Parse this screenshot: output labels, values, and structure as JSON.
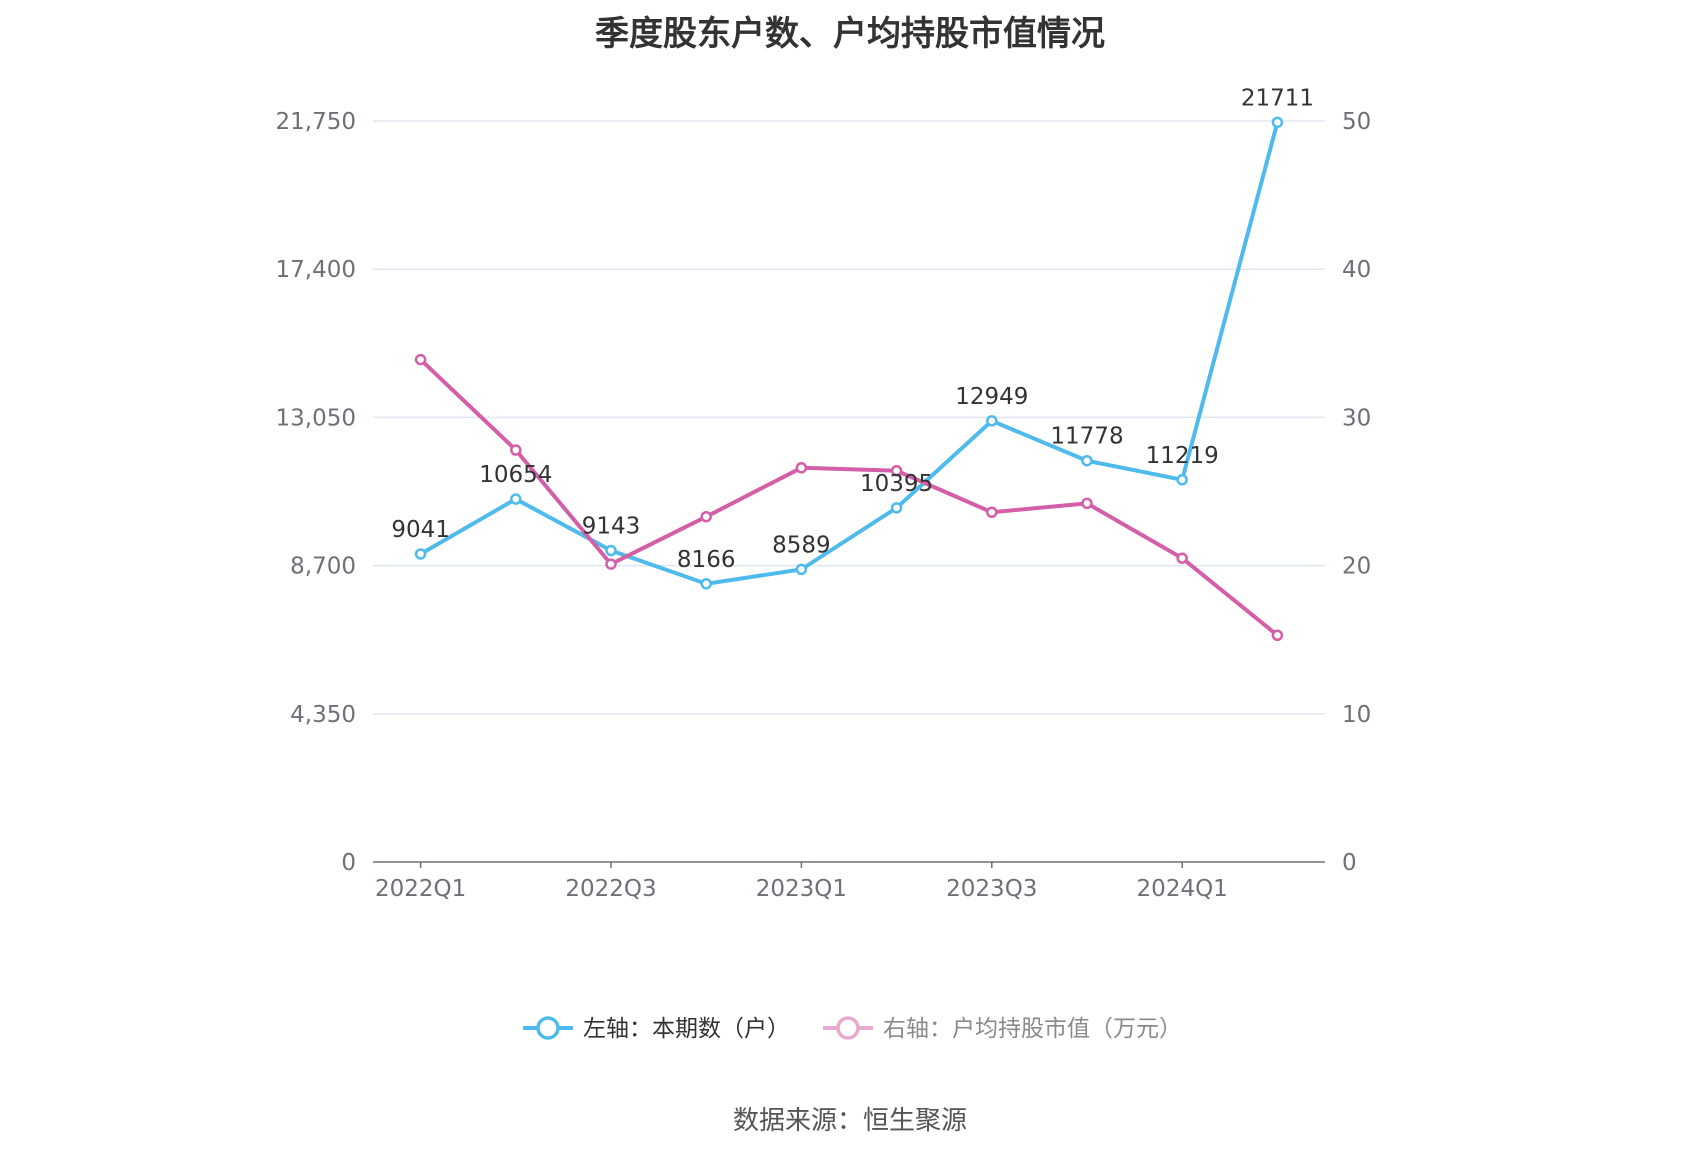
{
  "chart_data": {
    "type": "line",
    "title": "季度股东户数、户均持股市值情况",
    "categories": [
      "2022Q1",
      "2022Q2",
      "2022Q3",
      "2022Q4",
      "2023Q1",
      "2023Q2",
      "2023Q3",
      "2023Q4",
      "2024Q1",
      "2024Q2"
    ],
    "x_tick_labels": [
      "2022Q1",
      "2022Q3",
      "2023Q1",
      "2023Q3",
      "2024Q1"
    ],
    "left_axis": {
      "ticks": [
        "0",
        "4,350",
        "8,700",
        "13,050",
        "17,400",
        "21,750"
      ],
      "ylim": [
        0,
        21750
      ]
    },
    "right_axis": {
      "ticks": [
        "0",
        "10",
        "20",
        "30",
        "40",
        "50"
      ],
      "ylim": [
        0,
        50
      ]
    },
    "series": [
      {
        "name": "左轴：本期数（户）",
        "axis": "left",
        "color": "#4fbaec",
        "values": [
          9041,
          10654,
          9143,
          8166,
          8589,
          10395,
          12949,
          11778,
          11219,
          21711
        ],
        "labels": [
          "9041",
          "10654",
          "9143",
          "8166",
          "8589",
          "10395",
          "12949",
          "11778",
          "11219",
          "21711"
        ]
      },
      {
        "name": "右轴：户均持股市值（万元）",
        "axis": "right",
        "color": "#d45ea8",
        "values": [
          33.9,
          27.8,
          20.1,
          23.3,
          26.6,
          26.4,
          23.6,
          24.2,
          20.5,
          15.3
        ]
      }
    ],
    "grid": true,
    "legend_position": "bottom-center"
  },
  "source_text": "数据来源：恒生聚源"
}
